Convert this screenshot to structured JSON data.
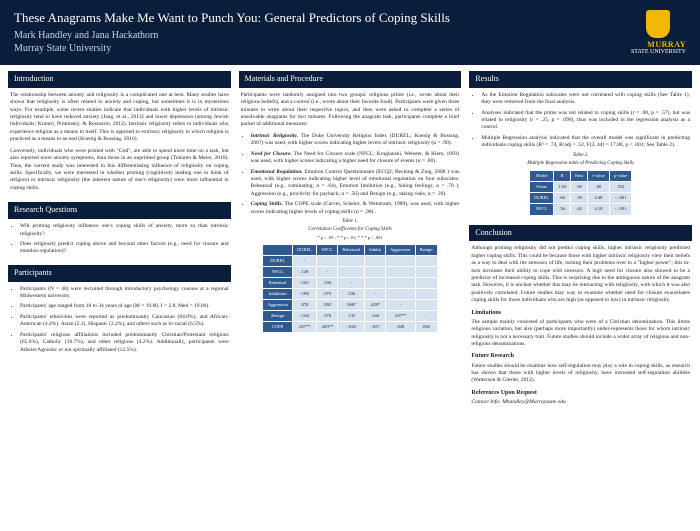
{
  "header": {
    "title": "These Anagrams Make Me Want to Punch You: General Predictors of Coping Skills",
    "authors": "Mark Handley and Jana Hackathorn",
    "affiliation": "Murray State University",
    "logo_top": "MURRAY",
    "logo_sub": "STATE UNIVERSITY"
  },
  "col1": {
    "intro_head": "Introduction",
    "intro_p1": "The relationship between anxiety and religiosity is a complicated one at best. Many studies have shown that religiosity is often related to anxiety and coping, but sometimes it is in mysterious ways. For example, some recent studies indicate that individuals with higher levels of intrinsic religiosity tend to have reduced anxiety (Jang, et al., 2013) and lower depression (among Jewish individuals; Krumri, Pirutinsky, & Rosmarin, 2012). Intrinsic religiosity refers to individuals who experience religion as a means in itself. This is opposed to extrinsic religiosity in which religion is practiced as a means to an end (Koenig & Bussing, 2010).",
    "intro_p2": "Conversely, individuals who were primed with \"God\", are able to spend more time on a task, but also reported more anxiety symptoms, than those in an unprimed group (Toburen & Meier, 2010). Thus, the current study was interested in this differentiating influence of religiosity on coping skills. Specifically, we were interested in whether priming (cognitively leading one to think of religion) or intrinsic religiosity (the inherent nature of one's religiosity) were more influential in coping skills.",
    "rq_head": "Research Questions",
    "rq1": "Will priming religiosity influence one's coping skills of anxiety, more so than intrinsic religiosity?",
    "rq2": "Does religiosity predict coping above and beyond other factors (e.g., need for closure and emotion regulation)?",
    "part_head": "Participants",
    "part1": "Participants (N = 48) were recruited through introductory psychology courses at a regional Midwestern university.",
    "part2": "Participants' age ranged from 18 to 34 years of age (M = 19.80, I = 2.8, Med = 19.00).",
    "part3": "Participants' ethnicities were reported as predominantly Caucasian (84.0%), and African-American (4.4%), Asian (2.1), Hispanic (2.2%), and others such as bi-racial (6.5%).",
    "part4": "Participants' religious affiliations included predominantly Christian/Protestant religions (65.6%), Catholic (16.7%), and other religions (4.2%). Additionally, participants were Atheist/Agnostic or not spiritually affiliated (12.5%)."
  },
  "col2": {
    "mat_head": "Materials and Procedure",
    "mat_p1": "Participants were randomly assigned into two groups: religious prime (i.e., wrote about their religious beliefs), and a control (i.e., wrote about their favorite food). Participants were given three minutes to write about their respective topics, and then were asked to complete a series of unsolvable anagrams for two minutes. Following the anagram task, participants complete a brief packet of additional measures:",
    "m1_label": "Intrinsic Religiosity.",
    "m1_text": " The Duke University Religion Index (DUREL; Koenig & Bussing, 2007) was used, with higher scores indicating higher levels of intrinsic religiosity (α = .90).",
    "m2_label": "Need for Closure.",
    "m2_text": " The Need for Closure scale (NFCL; Kruglanski, Webster, & Klem, 1993) was used, with higher scores indicating a higher need for closure of events (α = .80).",
    "m3_label": "Emotional Regulation.",
    "m3_text": " Emotion Control Questionnaire (ECQ2; Becking & Zing, 2008 ) was used, with higher scores indicating higher level of emotional regulation on four subscales: Rehearsal (e.g., ruminating; α = .64), Emotion Inhibition (e.g., hiding feelings; α = .70 ), Aggression (e.g., proclivity for payback; α = .56) and Benign (e.g., taking risks; α = .39).",
    "m4_label": "Coping Skills.",
    "m4_text": " The COPE scale (Carver, Scheier, & Weintraub, 1989), was used, with higher scores indicating higher levels of coping skills (α = .90) .",
    "t1_caption": "Table 1.",
    "t1_title": "Correlation Coefficients for Coping Skills",
    "t1_note": "* p < .05 ; * * p <.01; * * * p < .001",
    "t1_cols": [
      "",
      "DUREL",
      "NFCL",
      "Rehearsal",
      "Inhibit",
      "Aggression",
      "Benign"
    ],
    "t1_rows": [
      [
        "DUREL",
        "-",
        "",
        "",
        "",
        "",
        ""
      ],
      [
        "NFCL",
        ".149",
        "-",
        "",
        "",
        "",
        ""
      ],
      [
        "Rehearsal",
        "-.021",
        ".104",
        "-",
        "",
        "",
        ""
      ],
      [
        "Inhibition",
        "-.093",
        ".075",
        ".336",
        "-",
        "",
        ""
      ],
      [
        "Aggression",
        ".078",
        ".092",
        ".366*",
        ".429*",
        "-",
        ""
      ],
      [
        "Benign",
        "-.024",
        ".076",
        ".135",
        ".344",
        ".207**",
        "-"
      ],
      [
        "COPE",
        ".457**",
        ".483**",
        "-.020",
        "-.057",
        ".028",
        ".002"
      ]
    ]
  },
  "col3": {
    "res_head": "Results",
    "r1": "As the Emotion Regulation subscales were not correlated with coping skills (See Table 1), they were removed from the final analysis.",
    "r2": "Analyses indicated that the prime was not related to coping skills (r = .08, p = .57), but was related to religiosity (r = .25, p = .090), thus was included in the regression analysis as a control.",
    "r3": "Multiple Regression analysis indicated that the overall model was significant in predicting individuals coping skills (R² = .74, R²adj = .52, F(3, 44) = 17.88, p < .001; See Table 2).",
    "t2_caption": "Table 2.",
    "t2_title": "Multiple Regression table of Predicting Coping Skills",
    "t2_cols": [
      "Model",
      "B",
      "Beta",
      "t-value",
      "p-value"
    ],
    "t2_rows": [
      [
        "Prime",
        "1.04",
        ".06",
        ".60",
        ".552"
      ],
      [
        "DUREL",
        ".66",
        ".39",
        "4.48",
        "< .001"
      ],
      [
        "NFCL",
        ".56",
        ".42",
        "4.10",
        "< .001"
      ]
    ],
    "conc_head": "Conclusion",
    "conc_p1": "Although priming religiosity did not predict coping skills, higher intrinsic religiosity predicted higher coping skills. This could be because those with higher intrinsic religiosity view their beliefs as a way to deal with the stressors of life, turning their problems over to a \"higher power\"; this in-turn increases their ability to cope with stressors. A high need for closure also showed to be a predictor of increased coping skills. This is surprising due to the ambiguous nature of the anagram task. However, it is unclear whether this may be interacting with religiosity, with which it was also positively correlated. Future studies may way to examine whether need for closure exacerbates coping skills for those individuals who are high (as opposed to low) in intrinsic religiosity.",
    "lim_head": "Limitations",
    "lim_p": "The sample mainly consisted of participants who were of a Christian denomination. This limits religious variation, but also (perhaps more importantly) under-represents those for whom intrinsic religiosity is not a necessary trait. Future studies should include a wider array of religious and non-religious denominations.",
    "fut_head": "Future Research",
    "fut_p": "Future studies should be examine how self-regulation may play a role in coping skills, as research has shown that those with higher levels of religiosity, have increased self-regulation abilities (Watterson & Giesler, 2012).",
    "ref_head": "References Upon Request",
    "contact": "Contact Info: Mhandley@Murraystate.edu"
  }
}
